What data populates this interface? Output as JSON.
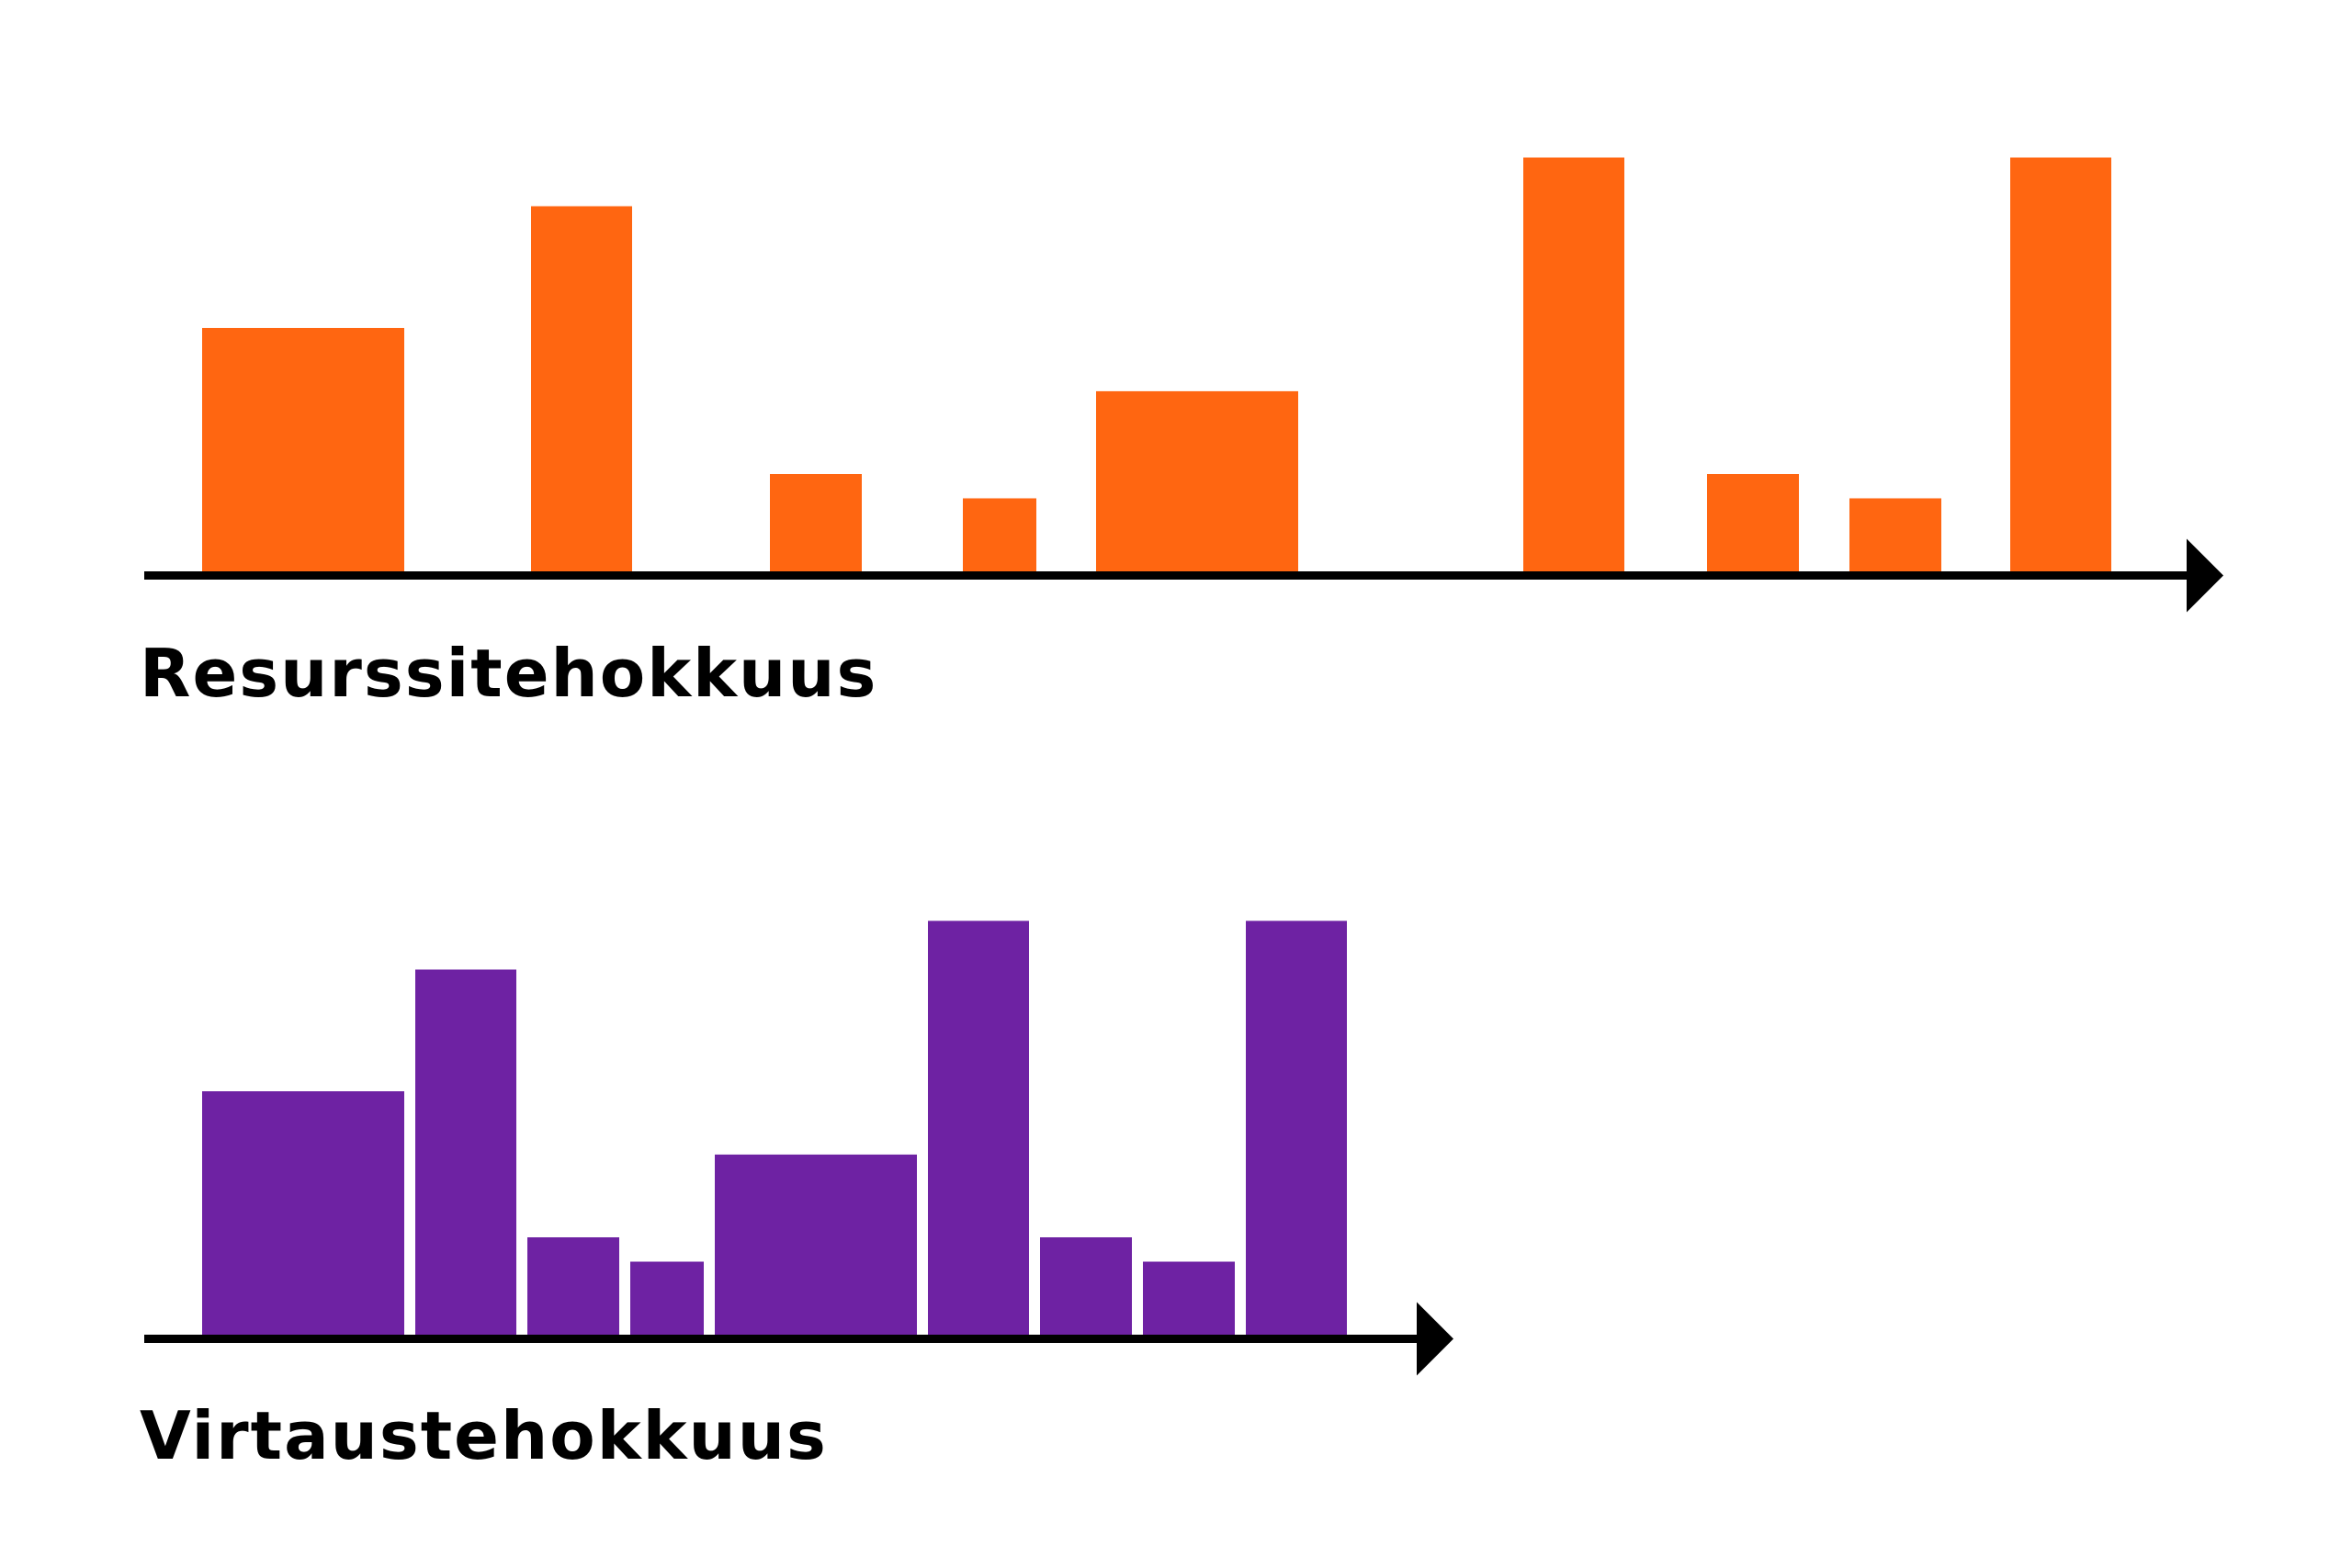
{
  "colors": {
    "resource_bars": "#FF6611",
    "flow_bars": "#6E22A3",
    "axis": "#000000"
  },
  "diagrams": [
    {
      "label": "Resurssitehokkuus",
      "color_key": "resource_bars",
      "bars": [
        {
          "duration": 2.2,
          "value": 5.0
        },
        {
          "duration": 1.1,
          "value": 7.5
        },
        {
          "duration": 1.0,
          "value": 2.0
        },
        {
          "duration": 0.8,
          "value": 1.5
        },
        {
          "duration": 2.2,
          "value": 3.7
        },
        {
          "duration": 1.1,
          "value": 8.5
        },
        {
          "duration": 1.0,
          "value": 2.0
        },
        {
          "duration": 1.0,
          "value": 1.5
        },
        {
          "duration": 1.1,
          "value": 8.5
        }
      ]
    },
    {
      "label": "Virtaustehokkuus",
      "color_key": "flow_bars",
      "bars": [
        {
          "duration": 2.2,
          "value": 5.0
        },
        {
          "duration": 1.1,
          "value": 7.5
        },
        {
          "duration": 1.0,
          "value": 2.0
        },
        {
          "duration": 0.8,
          "value": 1.5
        },
        {
          "duration": 2.2,
          "value": 3.7
        },
        {
          "duration": 1.1,
          "value": 8.5
        },
        {
          "duration": 1.0,
          "value": 2.0
        },
        {
          "duration": 1.0,
          "value": 1.5
        },
        {
          "duration": 1.1,
          "value": 8.5
        }
      ]
    }
  ]
}
